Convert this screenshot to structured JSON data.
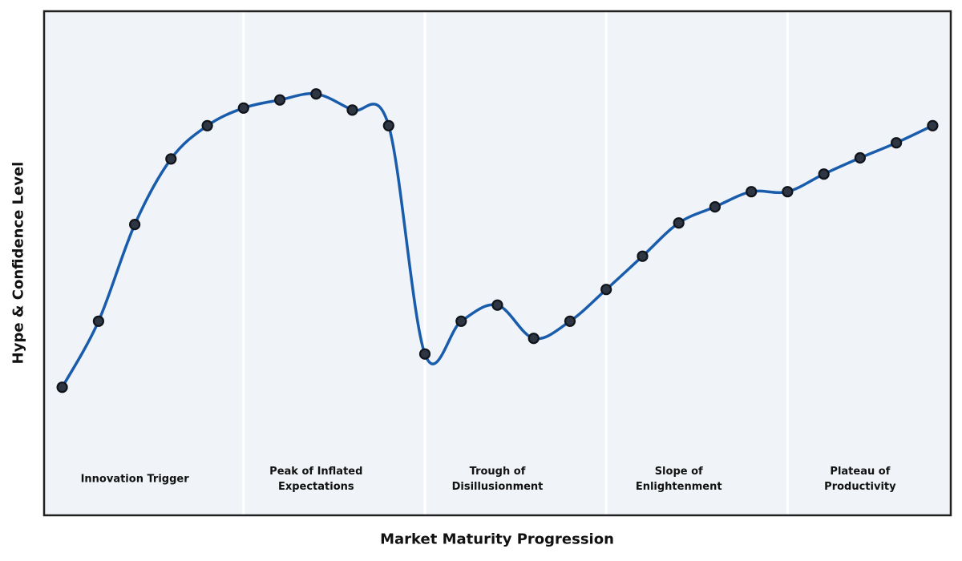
{
  "figure": {
    "background": "#ffffff",
    "plot_background": "#f0f4f8",
    "frame_color": "#212121",
    "divider_color": "#ffffff"
  },
  "chart_data": {
    "type": "line",
    "title": "",
    "xlabel": "Market Maturity Progression",
    "ylabel": "Hype & Confidence Level",
    "x": [
      1,
      2,
      3,
      4,
      5,
      6,
      7,
      8,
      9,
      10,
      11,
      12,
      13,
      14,
      15,
      16,
      17,
      18,
      19,
      20,
      21,
      22,
      23,
      24,
      25
    ],
    "values": [
      25.4,
      38.5,
      57.7,
      70.7,
      77.3,
      80.8,
      82.4,
      83.6,
      80.4,
      77.3,
      32.0,
      38.5,
      41.7,
      35.1,
      38.5,
      44.8,
      51.4,
      58.0,
      61.2,
      64.2,
      64.2,
      67.7,
      70.9,
      73.9,
      77.3
    ],
    "xlim": [
      0.5,
      25.5
    ],
    "ylim": [
      0,
      100
    ],
    "grid": false,
    "ticks_visible": false,
    "legend": "none",
    "line_color": "#1a5cac",
    "line_width": 3.5,
    "marker": {
      "shape": "circle",
      "radius": 6,
      "fill": "#2d3642",
      "edge_color": "#10141a",
      "edge_width": 2.2
    },
    "phase_boundaries_x": [
      6,
      11,
      16,
      21
    ],
    "phase_label_value": 7.3,
    "phases": [
      {
        "label": "Innovation Trigger",
        "lines": [
          "Innovation Trigger"
        ],
        "x_center": 3
      },
      {
        "label": "Peak of Inflated Expectations",
        "lines": [
          "Peak of Inflated",
          "Expectations"
        ],
        "x_center": 8
      },
      {
        "label": "Trough of Disillusionment",
        "lines": [
          "Trough of",
          "Disillusionment"
        ],
        "x_center": 13
      },
      {
        "label": "Slope of Enlightenment",
        "lines": [
          "Slope of",
          "Enlightenment"
        ],
        "x_center": 18
      },
      {
        "label": "Plateau of Productivity",
        "lines": [
          "Plateau of",
          "Productivity"
        ],
        "x_center": 23
      }
    ]
  }
}
